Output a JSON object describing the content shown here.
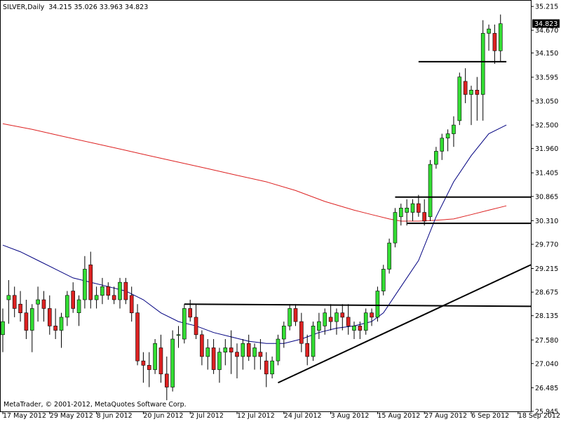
{
  "header": {
    "symbol": "SILVER,Daily",
    "ohlc": "34.215 35.026 33.963 34.823"
  },
  "footer": {
    "copyright": "MetaTrader, © 2001-2012, MetaQuotes Software Corp."
  },
  "chart_data": {
    "type": "candlestick",
    "symbol": "SILVER",
    "timeframe": "Daily",
    "ylim": [
      25.945,
      35.346
    ],
    "y_ticks": [
      "35.215",
      "34.670",
      "34.150",
      "33.595",
      "33.050",
      "32.500",
      "31.960",
      "31.405",
      "30.865",
      "30.310",
      "29.770",
      "29.215",
      "28.675",
      "28.135",
      "27.580",
      "27.040",
      "26.485",
      "25.945"
    ],
    "x_ticks": [
      "17 May 2012",
      "29 May 2012",
      "8 Jun 2012",
      "20 Jun 2012",
      "2 Jul 2012",
      "12 Jul 2012",
      "24 Jul 2012",
      "3 Aug 2012",
      "15 Aug 2012",
      "27 Aug 2012",
      "6 Sep 2012",
      "18 Sep 2012"
    ],
    "current_price": "34.823",
    "colors": {
      "bull": "#33dd33",
      "bear": "#dd2222",
      "ma_fast": "#000080",
      "ma_slow": "#dd2222",
      "lines": "#000000",
      "frame": "#000000"
    },
    "candles": [
      {
        "o": 27.7,
        "h": 28.3,
        "l": 27.3,
        "c": 28.0
      },
      {
        "o": 28.5,
        "h": 28.95,
        "l": 27.95,
        "c": 28.6
      },
      {
        "o": 28.6,
        "h": 28.8,
        "l": 28.1,
        "c": 28.3
      },
      {
        "o": 28.4,
        "h": 28.7,
        "l": 28.0,
        "c": 28.2
      },
      {
        "o": 28.2,
        "h": 28.5,
        "l": 27.6,
        "c": 27.8
      },
      {
        "o": 27.8,
        "h": 28.4,
        "l": 27.3,
        "c": 28.3
      },
      {
        "o": 28.4,
        "h": 28.8,
        "l": 28.0,
        "c": 28.5
      },
      {
        "o": 28.5,
        "h": 28.7,
        "l": 28.0,
        "c": 28.3
      },
      {
        "o": 28.3,
        "h": 28.6,
        "l": 27.7,
        "c": 27.9
      },
      {
        "o": 27.9,
        "h": 28.3,
        "l": 27.6,
        "c": 27.8
      },
      {
        "o": 27.8,
        "h": 28.2,
        "l": 27.4,
        "c": 28.1
      },
      {
        "o": 28.1,
        "h": 28.7,
        "l": 27.9,
        "c": 28.6
      },
      {
        "o": 28.7,
        "h": 28.9,
        "l": 28.2,
        "c": 28.3
      },
      {
        "o": 28.2,
        "h": 28.6,
        "l": 27.9,
        "c": 28.5
      },
      {
        "o": 28.5,
        "h": 29.5,
        "l": 28.3,
        "c": 29.2
      },
      {
        "o": 29.3,
        "h": 29.6,
        "l": 28.3,
        "c": 28.5
      },
      {
        "o": 28.5,
        "h": 28.8,
        "l": 28.3,
        "c": 28.6
      },
      {
        "o": 28.6,
        "h": 29.0,
        "l": 28.4,
        "c": 28.8
      },
      {
        "o": 28.8,
        "h": 28.9,
        "l": 28.5,
        "c": 28.6
      },
      {
        "o": 28.6,
        "h": 28.8,
        "l": 28.4,
        "c": 28.5
      },
      {
        "o": 28.5,
        "h": 29.0,
        "l": 28.3,
        "c": 28.9
      },
      {
        "o": 28.9,
        "h": 29.0,
        "l": 28.4,
        "c": 28.5
      },
      {
        "o": 28.6,
        "h": 28.8,
        "l": 28.0,
        "c": 28.2
      },
      {
        "o": 28.2,
        "h": 28.4,
        "l": 27.0,
        "c": 27.1
      },
      {
        "o": 27.1,
        "h": 27.3,
        "l": 26.6,
        "c": 27.0
      },
      {
        "o": 27.0,
        "h": 27.3,
        "l": 26.5,
        "c": 26.9
      },
      {
        "o": 26.9,
        "h": 27.6,
        "l": 26.8,
        "c": 27.5
      },
      {
        "o": 27.4,
        "h": 27.7,
        "l": 26.6,
        "c": 26.8
      },
      {
        "o": 26.8,
        "h": 27.2,
        "l": 26.2,
        "c": 26.5
      },
      {
        "o": 26.5,
        "h": 27.8,
        "l": 26.4,
        "c": 27.6
      },
      {
        "o": 27.7,
        "h": 27.9,
        "l": 27.4,
        "c": 27.7
      },
      {
        "o": 27.6,
        "h": 28.4,
        "l": 27.5,
        "c": 28.3
      },
      {
        "o": 28.3,
        "h": 28.5,
        "l": 28.0,
        "c": 28.1
      },
      {
        "o": 28.1,
        "h": 28.4,
        "l": 27.6,
        "c": 27.7
      },
      {
        "o": 27.7,
        "h": 27.8,
        "l": 27.0,
        "c": 27.2
      },
      {
        "o": 27.2,
        "h": 27.6,
        "l": 26.9,
        "c": 27.4
      },
      {
        "o": 27.4,
        "h": 27.6,
        "l": 26.8,
        "c": 26.9
      },
      {
        "o": 26.9,
        "h": 27.4,
        "l": 26.6,
        "c": 27.3
      },
      {
        "o": 27.3,
        "h": 27.6,
        "l": 27.0,
        "c": 27.4
      },
      {
        "o": 27.4,
        "h": 27.8,
        "l": 26.8,
        "c": 27.3
      },
      {
        "o": 27.3,
        "h": 27.5,
        "l": 26.7,
        "c": 27.2
      },
      {
        "o": 27.2,
        "h": 27.6,
        "l": 26.9,
        "c": 27.5
      },
      {
        "o": 27.5,
        "h": 27.7,
        "l": 27.1,
        "c": 27.2
      },
      {
        "o": 27.2,
        "h": 27.5,
        "l": 26.9,
        "c": 27.4
      },
      {
        "o": 27.3,
        "h": 27.6,
        "l": 26.9,
        "c": 27.2
      },
      {
        "o": 27.1,
        "h": 27.3,
        "l": 26.5,
        "c": 26.8
      },
      {
        "o": 26.8,
        "h": 27.2,
        "l": 26.7,
        "c": 27.1
      },
      {
        "o": 27.1,
        "h": 27.7,
        "l": 27.0,
        "c": 27.6
      },
      {
        "o": 27.6,
        "h": 28.0,
        "l": 27.4,
        "c": 27.9
      },
      {
        "o": 27.9,
        "h": 28.4,
        "l": 27.8,
        "c": 28.3
      },
      {
        "o": 28.3,
        "h": 28.4,
        "l": 27.9,
        "c": 28.0
      },
      {
        "o": 28.0,
        "h": 28.2,
        "l": 27.3,
        "c": 27.5
      },
      {
        "o": 27.5,
        "h": 27.7,
        "l": 27.0,
        "c": 27.2
      },
      {
        "o": 27.2,
        "h": 28.0,
        "l": 27.1,
        "c": 27.9
      },
      {
        "o": 27.8,
        "h": 28.2,
        "l": 27.6,
        "c": 28.0
      },
      {
        "o": 27.9,
        "h": 28.3,
        "l": 27.7,
        "c": 28.2
      },
      {
        "o": 28.1,
        "h": 28.4,
        "l": 27.8,
        "c": 28.0
      },
      {
        "o": 28.0,
        "h": 28.3,
        "l": 27.7,
        "c": 28.2
      },
      {
        "o": 28.2,
        "h": 28.4,
        "l": 27.8,
        "c": 28.1
      },
      {
        "o": 28.1,
        "h": 28.4,
        "l": 27.7,
        "c": 27.9
      },
      {
        "o": 27.8,
        "h": 28.0,
        "l": 27.6,
        "c": 27.9
      },
      {
        "o": 27.9,
        "h": 28.0,
        "l": 27.6,
        "c": 27.8
      },
      {
        "o": 27.8,
        "h": 28.3,
        "l": 27.7,
        "c": 28.2
      },
      {
        "o": 28.2,
        "h": 28.3,
        "l": 27.9,
        "c": 28.1
      },
      {
        "o": 28.1,
        "h": 28.8,
        "l": 28.0,
        "c": 28.7
      },
      {
        "o": 28.7,
        "h": 29.3,
        "l": 28.6,
        "c": 29.2
      },
      {
        "o": 29.2,
        "h": 29.9,
        "l": 29.1,
        "c": 29.8
      },
      {
        "o": 29.8,
        "h": 30.6,
        "l": 29.7,
        "c": 30.5
      },
      {
        "o": 30.4,
        "h": 30.7,
        "l": 30.2,
        "c": 30.6
      },
      {
        "o": 30.5,
        "h": 30.8,
        "l": 30.2,
        "c": 30.6
      },
      {
        "o": 30.5,
        "h": 30.8,
        "l": 30.3,
        "c": 30.7
      },
      {
        "o": 30.7,
        "h": 30.9,
        "l": 30.4,
        "c": 30.5
      },
      {
        "o": 30.5,
        "h": 30.8,
        "l": 30.2,
        "c": 30.3
      },
      {
        "o": 30.4,
        "h": 31.7,
        "l": 30.3,
        "c": 31.6
      },
      {
        "o": 31.6,
        "h": 32.0,
        "l": 31.5,
        "c": 31.9
      },
      {
        "o": 31.9,
        "h": 32.3,
        "l": 31.7,
        "c": 32.2
      },
      {
        "o": 32.2,
        "h": 32.4,
        "l": 31.9,
        "c": 32.3
      },
      {
        "o": 32.3,
        "h": 32.7,
        "l": 32.0,
        "c": 32.5
      },
      {
        "o": 32.6,
        "h": 33.7,
        "l": 32.5,
        "c": 33.6
      },
      {
        "o": 33.5,
        "h": 33.8,
        "l": 33.0,
        "c": 33.2
      },
      {
        "o": 33.2,
        "h": 33.4,
        "l": 32.5,
        "c": 33.3
      },
      {
        "o": 33.3,
        "h": 33.6,
        "l": 32.6,
        "c": 33.2
      },
      {
        "o": 33.2,
        "h": 34.9,
        "l": 32.6,
        "c": 34.6
      },
      {
        "o": 34.6,
        "h": 34.8,
        "l": 34.2,
        "c": 34.7
      },
      {
        "o": 34.6,
        "h": 34.8,
        "l": 33.9,
        "c": 34.2
      },
      {
        "o": 34.2,
        "h": 35.03,
        "l": 33.96,
        "c": 34.82
      }
    ],
    "ma_fast": [
      [
        0,
        29.75
      ],
      [
        3,
        29.6
      ],
      [
        6,
        29.4
      ],
      [
        9,
        29.2
      ],
      [
        12,
        29.0
      ],
      [
        15,
        28.9
      ],
      [
        18,
        28.8
      ],
      [
        21,
        28.7
      ],
      [
        24,
        28.5
      ],
      [
        27,
        28.2
      ],
      [
        30,
        28.0
      ],
      [
        33,
        27.9
      ],
      [
        36,
        27.75
      ],
      [
        39,
        27.65
      ],
      [
        42,
        27.55
      ],
      [
        45,
        27.5
      ],
      [
        48,
        27.5
      ],
      [
        51,
        27.6
      ],
      [
        54,
        27.75
      ],
      [
        57,
        27.85
      ],
      [
        60,
        27.9
      ],
      [
        63,
        28.0
      ],
      [
        65,
        28.2
      ],
      [
        68,
        28.8
      ],
      [
        71,
        29.4
      ],
      [
        74,
        30.4
      ],
      [
        77,
        31.2
      ],
      [
        80,
        31.8
      ],
      [
        83,
        32.3
      ],
      [
        86,
        32.5
      ]
    ],
    "ma_slow": [
      [
        0,
        32.53
      ],
      [
        5,
        32.4
      ],
      [
        10,
        32.25
      ],
      [
        15,
        32.1
      ],
      [
        20,
        31.95
      ],
      [
        25,
        31.8
      ],
      [
        30,
        31.65
      ],
      [
        35,
        31.5
      ],
      [
        40,
        31.35
      ],
      [
        45,
        31.2
      ],
      [
        50,
        31.0
      ],
      [
        55,
        30.75
      ],
      [
        60,
        30.55
      ],
      [
        63,
        30.45
      ],
      [
        66,
        30.35
      ],
      [
        68,
        30.3
      ],
      [
        71,
        30.3
      ],
      [
        74,
        30.32
      ],
      [
        77,
        30.35
      ],
      [
        80,
        30.45
      ],
      [
        83,
        30.55
      ],
      [
        86,
        30.65
      ]
    ],
    "hlines": [
      {
        "price": 33.95,
        "from": 71,
        "to": 86
      },
      {
        "price": 30.85,
        "from": 67,
        "to": 94
      },
      {
        "price": 30.25,
        "from": 69,
        "to": 94
      }
    ],
    "trendlines": [
      {
        "from": [
          31,
          28.4
        ],
        "to": [
          94,
          28.35
        ]
      },
      {
        "from": [
          47,
          26.6
        ],
        "to": [
          94,
          29.3
        ]
      }
    ]
  }
}
